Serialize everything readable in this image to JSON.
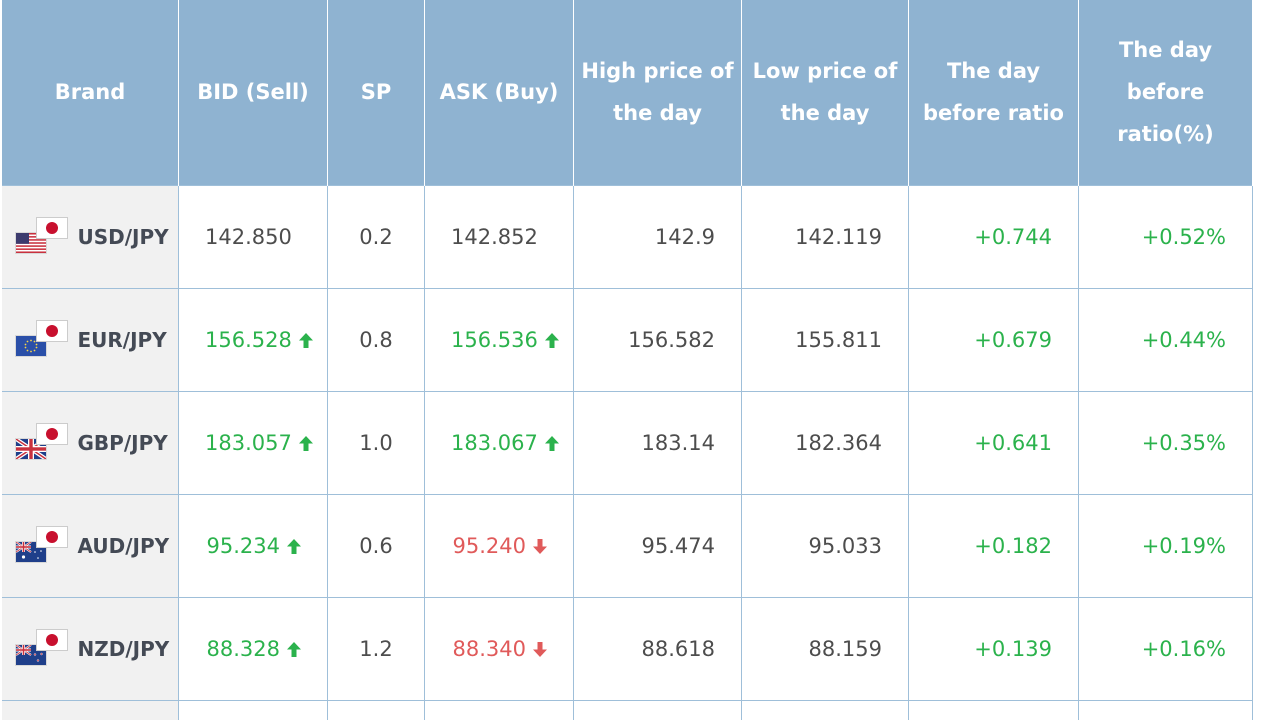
{
  "headers": {
    "brand": "Brand",
    "bid": "BID (Sell)",
    "sp": "SP",
    "ask": "ASK (Buy)",
    "high": "High price of the day",
    "low": "Low price of the day",
    "ratio": "The day before ratio",
    "ratio_pct": "The day before ratio(%)"
  },
  "colors": {
    "header_bg": "#8fb3d1",
    "up": "#2bb24c",
    "down": "#e05a5a",
    "brand_bg": "#f1f1f1"
  },
  "rows": [
    {
      "pair": "USD/JPY",
      "flag": "us-flag",
      "bid": "142.850",
      "bid_dir": "none",
      "sp": "0.2",
      "ask": "142.852",
      "ask_dir": "none",
      "high": "142.9",
      "low": "142.119",
      "ratio": "+0.744",
      "ratio_pct": "+0.52%"
    },
    {
      "pair": "EUR/JPY",
      "flag": "eu-flag",
      "bid": "156.528",
      "bid_dir": "up",
      "sp": "0.8",
      "ask": "156.536",
      "ask_dir": "up",
      "high": "156.582",
      "low": "155.811",
      "ratio": "+0.679",
      "ratio_pct": "+0.44%"
    },
    {
      "pair": "GBP/JPY",
      "flag": "uk-flag",
      "bid": "183.057",
      "bid_dir": "up",
      "sp": "1.0",
      "ask": "183.067",
      "ask_dir": "up",
      "high": "183.14",
      "low": "182.364",
      "ratio": "+0.641",
      "ratio_pct": "+0.35%"
    },
    {
      "pair": "AUD/JPY",
      "flag": "au-flag",
      "bid": "95.234",
      "bid_dir": "up",
      "sp": "0.6",
      "ask": "95.240",
      "ask_dir": "down",
      "high": "95.474",
      "low": "95.033",
      "ratio": "+0.182",
      "ratio_pct": "+0.19%"
    },
    {
      "pair": "NZD/JPY",
      "flag": "nz-flag",
      "bid": "88.328",
      "bid_dir": "up",
      "sp": "1.2",
      "ask": "88.340",
      "ask_dir": "down",
      "high": "88.618",
      "low": "88.159",
      "ratio": "+0.139",
      "ratio_pct": "+0.16%"
    }
  ]
}
